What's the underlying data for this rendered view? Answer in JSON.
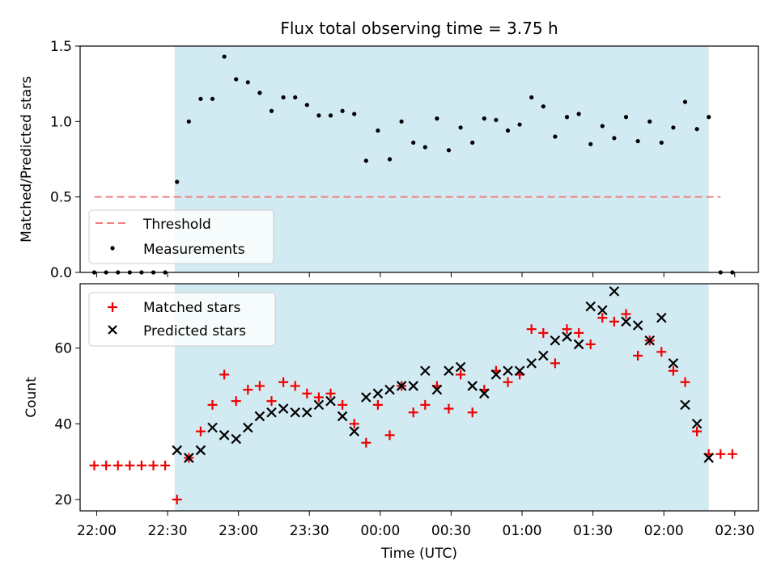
{
  "chart_data": [
    {
      "type": "scatter",
      "title": "Flux total observing time = 3.75 h",
      "ylabel": "Matched/Predicted stars",
      "xlabel": "",
      "xlim": [
        "21:53",
        "02:40"
      ],
      "ylim": [
        0,
        1.5
      ],
      "yticks": [
        "0.0",
        "0.5",
        "1.0",
        "1.5"
      ],
      "shaded_span": [
        "22:33",
        "02:19"
      ],
      "threshold": {
        "value": 0.5,
        "from": "21:59",
        "to": "02:24"
      },
      "legend_position": "lower-left",
      "legend": [
        "Threshold",
        "Measurements"
      ],
      "series": [
        {
          "name": "Measurements",
          "marker": "dot",
          "x": [
            "21:59",
            "22:04",
            "22:09",
            "22:14",
            "22:19",
            "22:24",
            "22:29",
            "22:34",
            "22:39",
            "22:44",
            "22:49",
            "22:54",
            "22:59",
            "23:04",
            "23:09",
            "23:14",
            "23:19",
            "23:24",
            "23:29",
            "23:34",
            "23:39",
            "23:44",
            "23:49",
            "23:54",
            "23:59",
            "00:04",
            "00:09",
            "00:14",
            "00:19",
            "00:24",
            "00:29",
            "00:34",
            "00:39",
            "00:44",
            "00:49",
            "00:54",
            "00:59",
            "01:04",
            "01:09",
            "01:14",
            "01:19",
            "01:24",
            "01:29",
            "01:34",
            "01:39",
            "01:44",
            "01:49",
            "01:54",
            "01:59",
            "02:04",
            "02:09",
            "02:14",
            "02:19",
            "02:24",
            "02:29"
          ],
          "y": [
            0,
            0,
            0,
            0,
            0,
            0,
            0,
            0.6,
            1.0,
            1.15,
            1.15,
            1.43,
            1.28,
            1.26,
            1.19,
            1.07,
            1.16,
            1.16,
            1.11,
            1.04,
            1.04,
            1.07,
            1.05,
            0.74,
            0.94,
            0.75,
            1.0,
            0.86,
            0.83,
            1.02,
            0.81,
            0.96,
            0.86,
            1.02,
            1.01,
            0.94,
            0.98,
            1.16,
            1.1,
            0.9,
            1.03,
            1.05,
            0.85,
            0.97,
            0.89,
            1.03,
            0.87,
            1.0,
            0.86,
            0.96,
            1.13,
            0.95,
            1.03,
            0,
            0
          ]
        }
      ]
    },
    {
      "type": "scatter",
      "title": "",
      "xlabel": "Time (UTC)",
      "ylabel": "Count",
      "xlim": [
        "21:53",
        "02:40"
      ],
      "ylim": [
        17,
        77
      ],
      "xticks": [
        "22:00",
        "22:30",
        "23:00",
        "23:30",
        "00:00",
        "00:30",
        "01:00",
        "01:30",
        "02:00",
        "02:30"
      ],
      "yticks": [
        "20",
        "40",
        "60"
      ],
      "shaded_span": [
        "22:33",
        "02:19"
      ],
      "legend_position": "upper-left",
      "legend": [
        "Matched stars",
        "Predicted stars"
      ],
      "series": [
        {
          "name": "Matched stars",
          "marker": "plus",
          "color": "#ee0000",
          "x": [
            "21:59",
            "22:04",
            "22:09",
            "22:14",
            "22:19",
            "22:24",
            "22:29",
            "22:34",
            "22:39",
            "22:44",
            "22:49",
            "22:54",
            "22:59",
            "23:04",
            "23:09",
            "23:14",
            "23:19",
            "23:24",
            "23:29",
            "23:34",
            "23:39",
            "23:44",
            "23:49",
            "23:54",
            "23:59",
            "00:04",
            "00:09",
            "00:14",
            "00:19",
            "00:24",
            "00:29",
            "00:34",
            "00:39",
            "00:44",
            "00:49",
            "00:54",
            "00:59",
            "01:04",
            "01:09",
            "01:14",
            "01:19",
            "01:24",
            "01:29",
            "01:34",
            "01:39",
            "01:44",
            "01:49",
            "01:54",
            "01:59",
            "02:04",
            "02:09",
            "02:14",
            "02:19",
            "02:24",
            "02:29"
          ],
          "y": [
            29,
            29,
            29,
            29,
            29,
            29,
            29,
            20,
            31,
            38,
            45,
            53,
            46,
            49,
            50,
            46,
            51,
            50,
            48,
            47,
            48,
            45,
            40,
            35,
            45,
            37,
            50,
            43,
            45,
            50,
            44,
            53,
            43,
            49,
            54,
            51,
            53,
            65,
            64,
            56,
            65,
            64,
            61,
            68,
            67,
            69,
            58,
            62,
            59,
            54,
            51,
            38,
            32,
            32,
            32
          ]
        },
        {
          "name": "Predicted stars",
          "marker": "x",
          "color": "#000000",
          "x": [
            "22:34",
            "22:39",
            "22:44",
            "22:49",
            "22:54",
            "22:59",
            "23:04",
            "23:09",
            "23:14",
            "23:19",
            "23:24",
            "23:29",
            "23:34",
            "23:39",
            "23:44",
            "23:49",
            "23:54",
            "23:59",
            "00:04",
            "00:09",
            "00:14",
            "00:19",
            "00:24",
            "00:29",
            "00:34",
            "00:39",
            "00:44",
            "00:49",
            "00:54",
            "00:59",
            "01:04",
            "01:09",
            "01:14",
            "01:19",
            "01:24",
            "01:29",
            "01:34",
            "01:39",
            "01:44",
            "01:49",
            "01:54",
            "01:59",
            "02:04",
            "02:09",
            "02:14",
            "02:19"
          ],
          "y": [
            33,
            31,
            33,
            39,
            37,
            36,
            39,
            42,
            43,
            44,
            43,
            43,
            45,
            46,
            42,
            38,
            47,
            48,
            49,
            50,
            50,
            54,
            49,
            54,
            55,
            50,
            48,
            53,
            54,
            54,
            56,
            58,
            62,
            63,
            61,
            71,
            70,
            75,
            67,
            66,
            62,
            68,
            56,
            45,
            40,
            31
          ]
        }
      ]
    }
  ]
}
